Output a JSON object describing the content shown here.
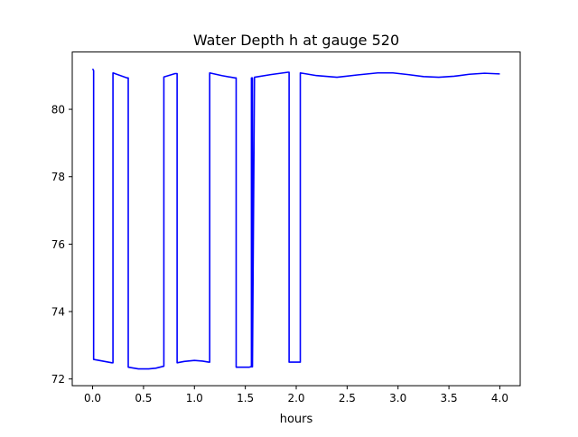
{
  "chart_data": {
    "type": "line",
    "title": "Water Depth h at gauge 520",
    "xlabel": "hours",
    "ylabel": "",
    "xlim": [
      -0.2,
      4.2
    ],
    "ylim": [
      71.8,
      81.7
    ],
    "xticks": [
      0.0,
      0.5,
      1.0,
      1.5,
      2.0,
      2.5,
      3.0,
      3.5,
      4.0
    ],
    "xtick_labels": [
      "0.0",
      "0.5",
      "1.0",
      "1.5",
      "2.0",
      "2.5",
      "3.0",
      "3.5",
      "4.0"
    ],
    "yticks": [
      72,
      74,
      76,
      78,
      80
    ],
    "ytick_labels": [
      "72",
      "74",
      "76",
      "78",
      "80"
    ],
    "grid": false,
    "legend": "none",
    "series": [
      {
        "color": "#0000ff",
        "x": [
          0.0,
          0.01,
          0.01,
          0.19,
          0.2,
          0.2,
          0.34,
          0.35,
          0.35,
          0.45,
          0.55,
          0.62,
          0.7,
          0.7,
          0.81,
          0.83,
          0.83,
          0.9,
          1.0,
          1.08,
          1.14,
          1.15,
          1.15,
          1.27,
          1.4,
          1.41,
          1.41,
          1.53,
          1.54,
          1.55,
          1.56,
          1.56,
          1.57,
          1.57,
          1.59,
          1.75,
          1.92,
          1.93,
          1.93,
          2.03,
          2.04,
          2.04,
          2.2,
          2.4,
          2.6,
          2.8,
          2.95,
          3.1,
          3.25,
          3.4,
          3.55,
          3.7,
          3.85,
          4.0
        ],
        "y": [
          81.2,
          81.15,
          72.58,
          72.48,
          72.48,
          81.08,
          80.93,
          80.93,
          72.35,
          72.3,
          72.3,
          72.32,
          72.38,
          80.96,
          81.06,
          81.06,
          72.48,
          72.52,
          72.55,
          72.53,
          72.5,
          72.5,
          81.08,
          81.0,
          80.93,
          80.93,
          72.35,
          72.35,
          72.35,
          72.36,
          72.36,
          80.93,
          80.93,
          72.36,
          80.95,
          81.03,
          81.1,
          81.1,
          72.5,
          72.5,
          72.5,
          81.08,
          81.0,
          80.95,
          81.02,
          81.08,
          81.08,
          81.03,
          80.97,
          80.95,
          80.98,
          81.04,
          81.07,
          81.05
        ]
      }
    ]
  }
}
